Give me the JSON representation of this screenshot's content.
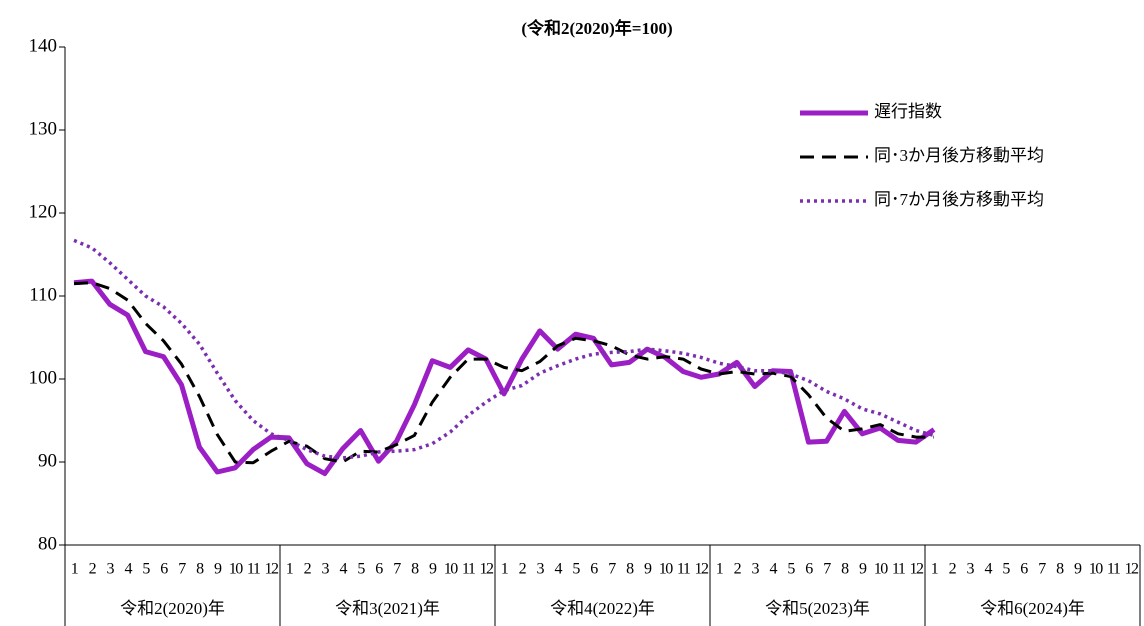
{
  "chart_data": {
    "type": "line",
    "title": "(令和2(2020)年=100)",
    "categories": [
      "1",
      "2",
      "3",
      "4",
      "5",
      "6",
      "7",
      "8",
      "9",
      "10",
      "11",
      "12",
      "1",
      "2",
      "3",
      "4",
      "5",
      "6",
      "7",
      "8",
      "9",
      "10",
      "11",
      "12",
      "1",
      "2",
      "3",
      "4",
      "5",
      "6",
      "7",
      "8",
      "9",
      "10",
      "11",
      "12",
      "1",
      "2",
      "3",
      "4",
      "5",
      "6",
      "7",
      "8",
      "9",
      "10",
      "11",
      "12",
      "1",
      "2",
      "3",
      "4",
      "5",
      "6",
      "7",
      "8",
      "9",
      "10",
      "11",
      "12"
    ],
    "groups": [
      "令和2(2020)年",
      "令和3(2021)年",
      "令和4(2022)年",
      "令和5(2023)年",
      "令和6(2024)年"
    ],
    "ylim": [
      80,
      140
    ],
    "yticks": [
      80,
      90,
      100,
      110,
      120,
      130,
      140
    ],
    "legend": "upper right",
    "series": [
      {
        "name": "遅行指数",
        "color": "#9b1fc4",
        "style": "solid",
        "values": [
          111.6,
          111.8,
          109.0,
          107.7,
          103.3,
          102.7,
          99.3,
          91.8,
          88.8,
          89.3,
          91.5,
          93.0,
          92.9,
          89.8,
          88.6,
          91.6,
          93.8,
          90.1,
          92.5,
          96.9,
          102.2,
          101.4,
          103.5,
          102.4,
          98.2,
          102.4,
          105.8,
          103.6,
          105.4,
          104.9,
          101.7,
          102.0,
          103.6,
          102.6,
          100.9,
          100.2,
          100.6,
          102.0,
          99.1,
          101.0,
          100.9,
          92.4,
          92.5,
          96.1,
          93.4,
          94.1,
          92.6,
          92.4,
          93.9,
          null,
          null,
          null,
          null,
          null,
          null,
          null,
          null,
          null,
          null,
          null
        ]
      },
      {
        "name": "同･3か月後方移動平均",
        "color": "#000000",
        "style": "dashed",
        "values": [
          111.5,
          111.6,
          110.9,
          109.5,
          106.7,
          104.6,
          101.8,
          97.9,
          93.3,
          90.0,
          89.9,
          91.3,
          92.5,
          91.9,
          90.4,
          90.0,
          91.3,
          91.2,
          92.1,
          93.2,
          97.2,
          100.2,
          102.4,
          102.4,
          101.4,
          101.0,
          102.1,
          104.0,
          104.9,
          104.6,
          104.0,
          102.9,
          102.4,
          102.7,
          102.4,
          101.2,
          100.6,
          100.9,
          100.6,
          100.7,
          100.3,
          98.1,
          95.3,
          93.7,
          94.0,
          94.5,
          93.4,
          93.0,
          93.0,
          null,
          null,
          null,
          null,
          null,
          null,
          null,
          null,
          null,
          null,
          null
        ]
      },
      {
        "name": "同･7か月後方移動平均",
        "color": "#7b2fb0",
        "style": "dotted",
        "values": [
          116.7,
          115.8,
          114.0,
          112.0,
          110.0,
          108.7,
          106.7,
          104.2,
          100.7,
          97.4,
          95.0,
          93.4,
          92.6,
          91.5,
          90.7,
          90.5,
          90.7,
          91.2,
          91.3,
          91.5,
          92.2,
          93.6,
          95.6,
          97.2,
          98.6,
          99.2,
          100.7,
          101.6,
          102.4,
          103.0,
          103.2,
          103.3,
          103.6,
          103.4,
          103.1,
          102.6,
          101.9,
          101.5,
          101.0,
          101.0,
          100.6,
          99.8,
          98.5,
          97.6,
          96.4,
          95.8,
          94.8,
          93.8,
          93.2,
          null,
          null,
          null,
          null,
          null,
          null,
          null,
          null,
          null,
          null,
          null
        ]
      }
    ]
  }
}
